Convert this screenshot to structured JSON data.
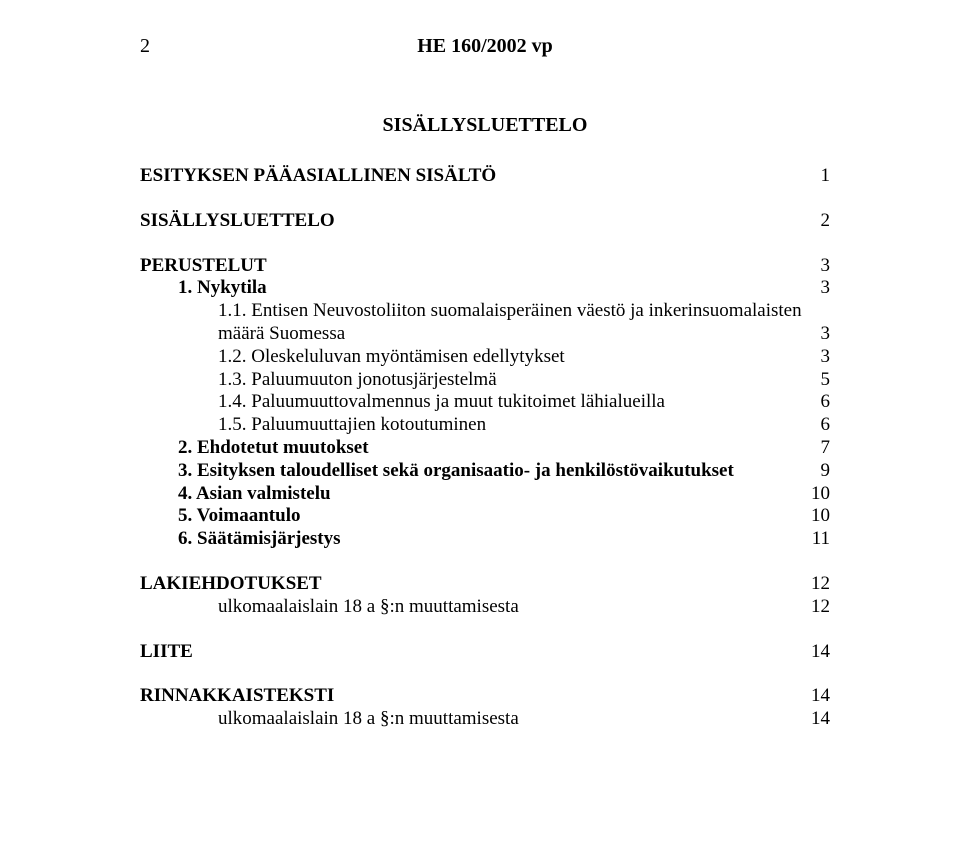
{
  "header": {
    "page_number_left": "2",
    "title_center": "HE 160/2002 vp"
  },
  "toc_title": "SISÄLLYSLUETTELO",
  "colors": {
    "text": "#000000",
    "background": "#ffffff"
  },
  "fonts": {
    "family": "Times New Roman",
    "body_size_pt": 14,
    "header_weight": "bold"
  },
  "blocks": [
    {
      "rows": [
        {
          "label": "ESITYKSEN PÄÄASIALLINEN SISÄLTÖ",
          "page": "1",
          "bold": true,
          "indent": 0
        }
      ]
    },
    {
      "rows": [
        {
          "label": "SISÄLLYSLUETTELO",
          "page": "2",
          "bold": true,
          "indent": 0
        }
      ]
    },
    {
      "rows": [
        {
          "label": "PERUSTELUT",
          "page": "3",
          "bold": true,
          "indent": 0
        },
        {
          "label": "1.  Nykytila",
          "page": "3",
          "bold": true,
          "indent": 1
        },
        {
          "label": "1.1.   Entisen Neuvostoliiton suomalaisperäinen väestö ja inkerinsuomalaisten",
          "wrap_label": "määrä Suomessa",
          "page": "3",
          "bold": false,
          "indent": 2
        },
        {
          "label": "1.2.   Oleskeluluvan myöntämisen edellytykset",
          "page": "3",
          "bold": false,
          "indent": 2
        },
        {
          "label": "1.3.   Paluumuuton jonotusjärjestelmä",
          "page": "5",
          "bold": false,
          "indent": 2
        },
        {
          "label": "1.4.   Paluumuuttovalmennus ja muut tukitoimet lähialueilla",
          "page": "6",
          "bold": false,
          "indent": 2
        },
        {
          "label": "1.5.   Paluumuuttajien kotoutuminen",
          "page": "6",
          "bold": false,
          "indent": 2
        },
        {
          "label": "2.  Ehdotetut muutokset",
          "page": "7",
          "bold": true,
          "indent": 1
        },
        {
          "label": "3.  Esityksen taloudelliset sekä organisaatio- ja henkilöstövaikutukset",
          "page": "9",
          "bold": true,
          "indent": 1
        },
        {
          "label": "4.  Asian valmistelu",
          "page": "10",
          "bold": true,
          "indent": 1
        },
        {
          "label": "5.  Voimaantulo",
          "page": "10",
          "bold": true,
          "indent": 1
        },
        {
          "label": "6.  Säätämisjärjestys",
          "page": "11",
          "bold": true,
          "indent": 1
        }
      ]
    },
    {
      "rows": [
        {
          "label": "LAKIEHDOTUKSET",
          "page": "12",
          "bold": true,
          "indent": 0
        },
        {
          "label": "ulkomaalaislain 18 a §:n muuttamisesta",
          "page": "12",
          "bold": false,
          "indent": 2
        }
      ]
    },
    {
      "rows": [
        {
          "label": "LIITE",
          "page": "14",
          "bold": true,
          "indent": 0
        }
      ]
    },
    {
      "rows": [
        {
          "label": "RINNAKKAISTEKSTI",
          "page": "14",
          "bold": true,
          "indent": 0
        },
        {
          "label": "ulkomaalaislain 18 a §:n muuttamisesta",
          "page": "14",
          "bold": false,
          "indent": 2
        }
      ]
    }
  ]
}
